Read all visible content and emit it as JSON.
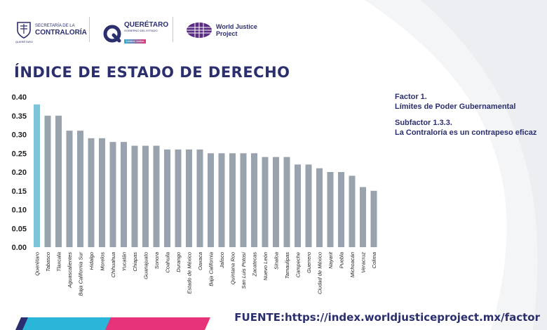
{
  "header": {
    "contraloria": {
      "line1": "SECRETARÍA DE LA",
      "line2": "CONTRALORÍA",
      "line3": "QUERÉTARO"
    },
    "queretaro": {
      "name": "QUERÉTARO",
      "sub": "GOBIERNO DEL ESTADO",
      "tag": "Unidos Juntos"
    },
    "wjp": {
      "line1": "World Justice",
      "line2": "Project"
    }
  },
  "title": "ÍNDICE DE ESTADO DE DERECHO",
  "side": {
    "factor": "Factor 1.",
    "factor_name": "Límites de Poder Gubernamental",
    "subfactor": "Subfactor 1.3.3.",
    "subfactor_name": "La Contraloría es un contrapeso eficaz"
  },
  "source": "FUENTE:https://index.worldjusticeproject.mx/factor",
  "colors": {
    "highlight": "#7ec4d8",
    "bar": "#98a3ad",
    "navy": "#2b2f6d",
    "pink": "#e6337a",
    "cyan": "#29b6d8",
    "purple": "#5a2d82"
  },
  "chart_data": {
    "type": "bar",
    "categories": [
      "Querétaro",
      "Tabasco",
      "Tlaxcala",
      "Aguascalientes",
      "Baja California Sur",
      "Hidalgo",
      "Morelos",
      "Chihuahua",
      "Yucatán",
      "Chiapas",
      "Guanajuato",
      "Sonora",
      "Coahuila",
      "Durango",
      "Estado de México",
      "Oaxaca",
      "Baja California",
      "Jalisco",
      "Quintana Roo",
      "San Luis Potosí",
      "Zacatecas",
      "Nuevo León",
      "Sinaloa",
      "Tamaulipas",
      "Campeche",
      "Guerrero",
      "Ciudad de México",
      "Nayarit",
      "Puebla",
      "Michoacán",
      "Veracruz",
      "Colima"
    ],
    "values": [
      0.38,
      0.35,
      0.35,
      0.31,
      0.31,
      0.29,
      0.29,
      0.28,
      0.28,
      0.27,
      0.27,
      0.27,
      0.26,
      0.26,
      0.26,
      0.26,
      0.25,
      0.25,
      0.25,
      0.25,
      0.25,
      0.24,
      0.24,
      0.24,
      0.22,
      0.22,
      0.21,
      0.2,
      0.2,
      0.19,
      0.16,
      0.15
    ],
    "highlight_index": 0,
    "yticks": [
      "0.00",
      "0.05",
      "0.10",
      "0.15",
      "0.20",
      "0.25",
      "0.30",
      "0.35",
      "0.40"
    ],
    "ylim": [
      0,
      0.4
    ],
    "grid": false,
    "legend": "none"
  }
}
